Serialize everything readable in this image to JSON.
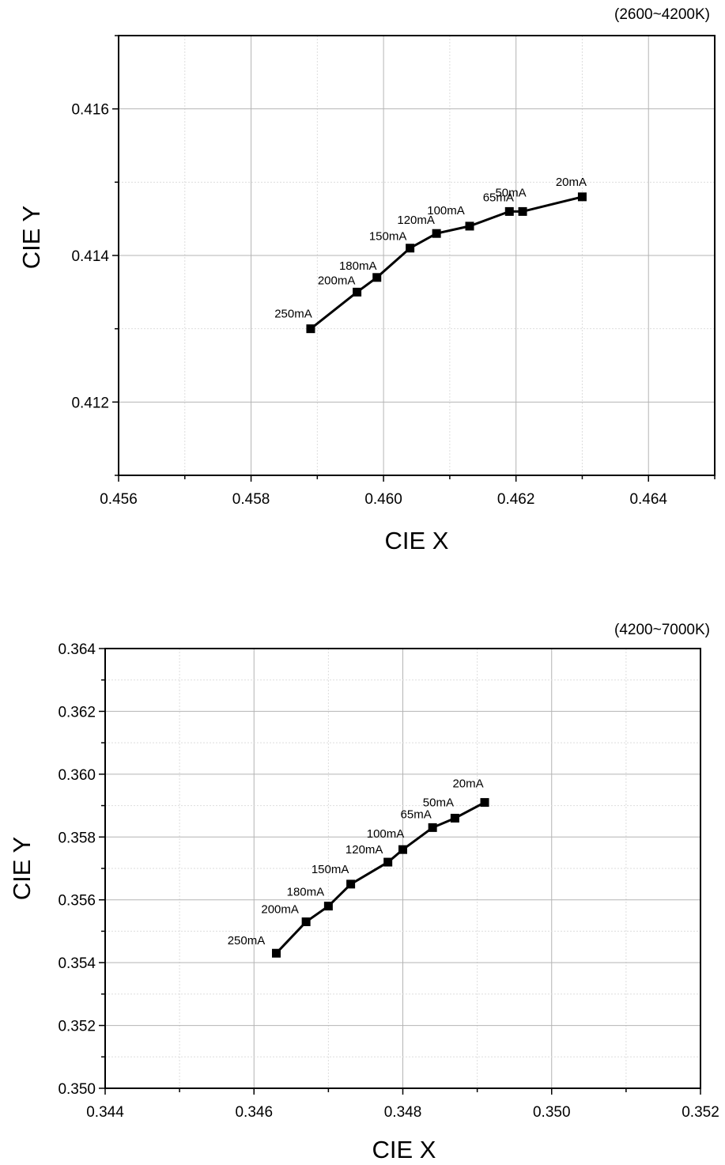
{
  "chart_data": [
    {
      "type": "line",
      "note": "(2600~4200K)",
      "xlabel": "CIE X",
      "ylabel": "CIE Y",
      "xlim": [
        0.456,
        0.465
      ],
      "ylim": [
        0.411,
        0.417
      ],
      "xticks": [
        "0.456",
        "0.458",
        "0.460",
        "0.462",
        "0.464"
      ],
      "yticks": [
        "0.412",
        "0.414",
        "0.416"
      ],
      "grid": true,
      "marker": "square",
      "color": "#000000",
      "points": [
        {
          "label": "250mA",
          "x": 0.4589,
          "y": 0.413
        },
        {
          "label": "200mA",
          "x": 0.4596,
          "y": 0.4135
        },
        {
          "label": "180mA",
          "x": 0.4599,
          "y": 0.4137
        },
        {
          "label": "150mA",
          "x": 0.4604,
          "y": 0.4141
        },
        {
          "label": "120mA",
          "x": 0.4608,
          "y": 0.4143
        },
        {
          "label": "100mA",
          "x": 0.4613,
          "y": 0.4144
        },
        {
          "label": "65mA",
          "x": 0.4619,
          "y": 0.4146
        },
        {
          "label": "50mA",
          "x": 0.4621,
          "y": 0.4146
        },
        {
          "label": "20mA",
          "x": 0.463,
          "y": 0.4148
        }
      ]
    },
    {
      "type": "line",
      "note": "(4200~7000K)",
      "xlabel": "CIE X",
      "ylabel": "CIE Y",
      "xlim": [
        0.344,
        0.352
      ],
      "ylim": [
        0.35,
        0.364
      ],
      "xticks": [
        "0.344",
        "0.346",
        "0.348",
        "0.350",
        "0.352"
      ],
      "yticks": [
        "0.350",
        "0.352",
        "0.354",
        "0.356",
        "0.358",
        "0.360",
        "0.362",
        "0.364"
      ],
      "grid": true,
      "marker": "square",
      "color": "#000000",
      "points": [
        {
          "label": "250mA",
          "x": 0.3463,
          "y": 0.3543
        },
        {
          "label": "200mA",
          "x": 0.3467,
          "y": 0.3553
        },
        {
          "label": "180mA",
          "x": 0.347,
          "y": 0.3558
        },
        {
          "label": "150mA",
          "x": 0.3473,
          "y": 0.3565
        },
        {
          "label": "120mA",
          "x": 0.3478,
          "y": 0.3572
        },
        {
          "label": "100mA",
          "x": 0.348,
          "y": 0.3576
        },
        {
          "label": "65mA",
          "x": 0.3484,
          "y": 0.3583
        },
        {
          "label": "50mA",
          "x": 0.3487,
          "y": 0.3586
        },
        {
          "label": "20mA",
          "x": 0.3491,
          "y": 0.3591
        }
      ]
    }
  ]
}
